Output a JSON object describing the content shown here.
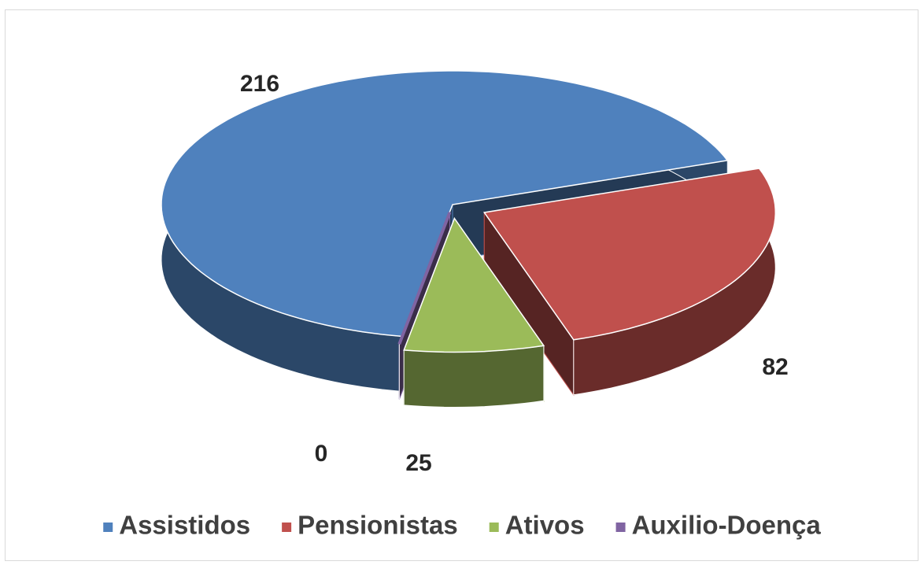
{
  "chart_data": {
    "type": "pie",
    "categories": [
      "Assistidos",
      "Pensionistas",
      "Ativos",
      "Auxilio-Doença"
    ],
    "values": [
      216,
      82,
      25,
      0
    ],
    "colors": [
      "#4f81bd",
      "#c0504d",
      "#9bbb59",
      "#8064a2"
    ],
    "legend": "bottom"
  }
}
